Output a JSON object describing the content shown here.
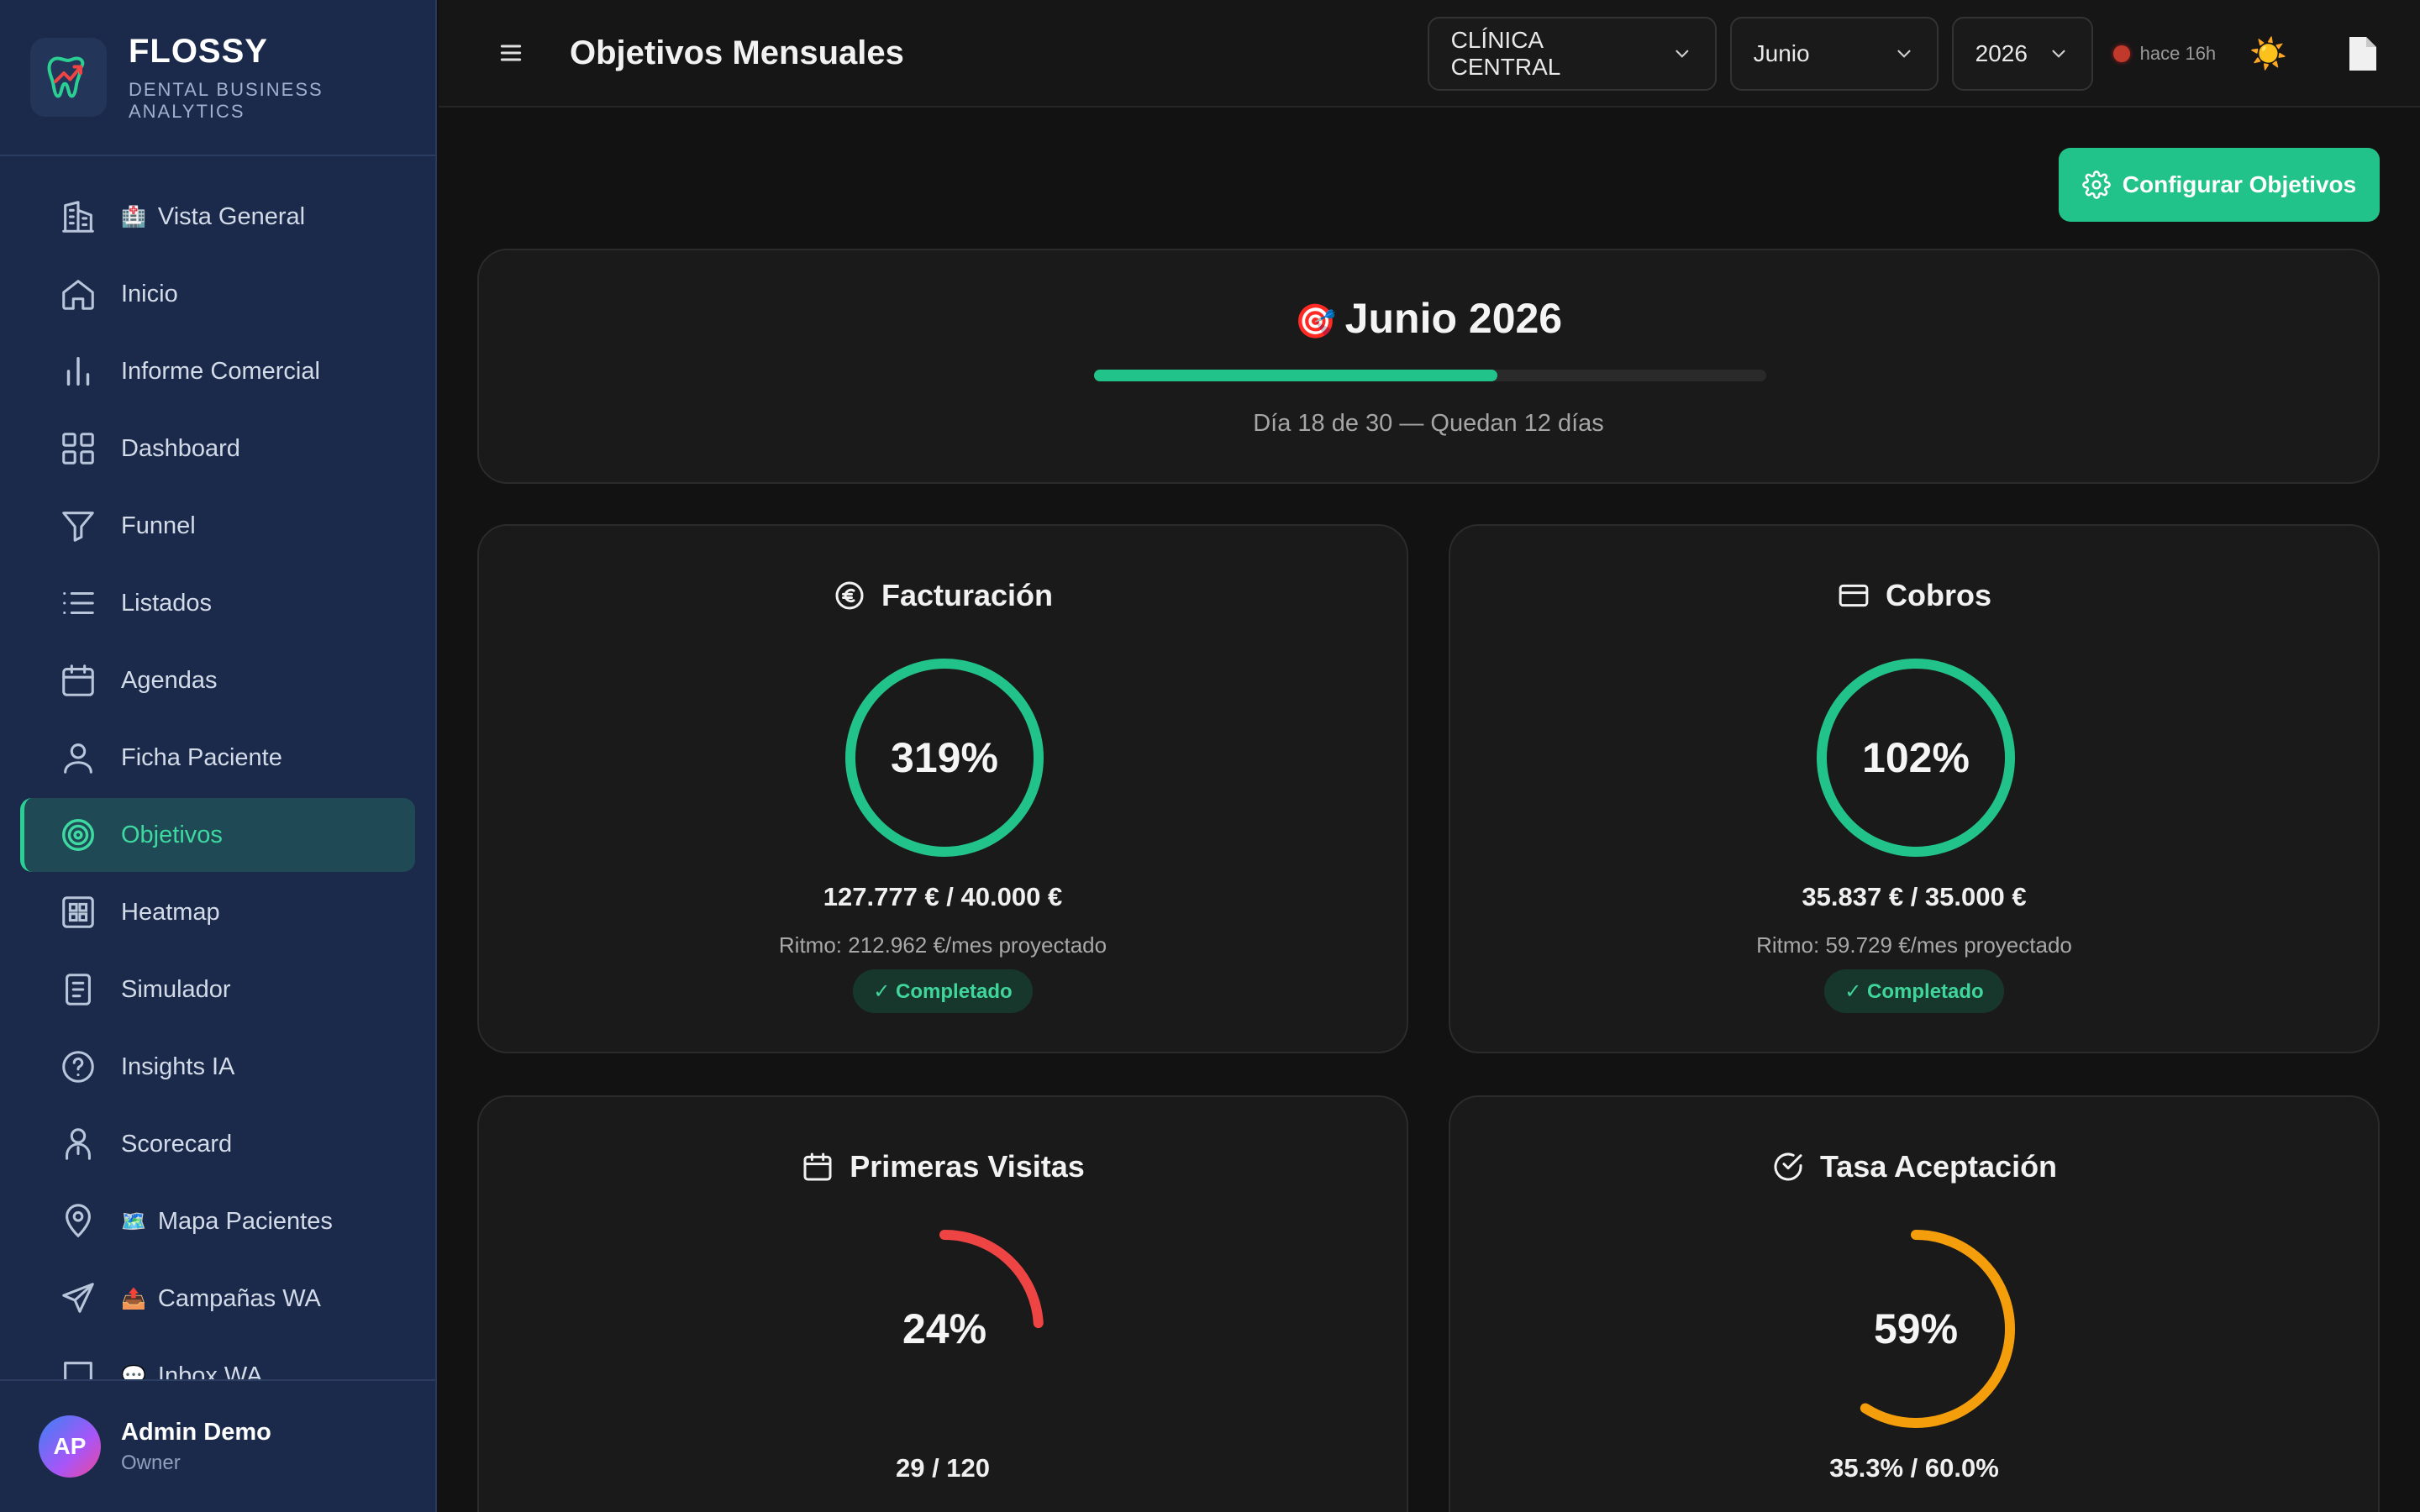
{
  "brand": {
    "name": "FLOSSY",
    "subtitle": "DENTAL BUSINESS ANALYTICS"
  },
  "sidebar": {
    "items": [
      {
        "label": "Vista General",
        "icon": "building-icon",
        "emoji": "🏥"
      },
      {
        "label": "Inicio",
        "icon": "home-icon"
      },
      {
        "label": "Informe Comercial",
        "icon": "bar-chart-icon"
      },
      {
        "label": "Dashboard",
        "icon": "grid-icon"
      },
      {
        "label": "Funnel",
        "icon": "funnel-icon"
      },
      {
        "label": "Listados",
        "icon": "list-icon"
      },
      {
        "label": "Agendas",
        "icon": "calendar-icon"
      },
      {
        "label": "Ficha Paciente",
        "icon": "user-icon"
      },
      {
        "label": "Objetivos",
        "icon": "target-icon",
        "active": true
      },
      {
        "label": "Heatmap",
        "icon": "heatmap-icon"
      },
      {
        "label": "Simulador",
        "icon": "document-icon"
      },
      {
        "label": "Insights IA",
        "icon": "help-circle-icon"
      },
      {
        "label": "Scorecard",
        "icon": "user-badge-icon"
      },
      {
        "label": "Mapa Pacientes",
        "icon": "map-pin-icon",
        "emoji": "🗺️"
      },
      {
        "label": "Campañas WA",
        "icon": "send-icon",
        "emoji": "📤"
      },
      {
        "label": "Inbox WA",
        "icon": "message-icon",
        "emoji": "💬"
      }
    ]
  },
  "user": {
    "initials": "AP",
    "name": "Admin Demo",
    "role": "Owner"
  },
  "header": {
    "title": "Objetivos Mensuales",
    "clinic": "CLÍNICA CENTRAL",
    "month": "Junio",
    "year": "2026",
    "sync_status": "hace 16h",
    "theme_icon": "☀️"
  },
  "actions": {
    "configure": "Configurar Objetivos"
  },
  "month_summary": {
    "emoji": "🎯",
    "title": "Junio 2026",
    "progress": 0.6,
    "subtitle": "Día 18 de 30 — Quedan 12 días"
  },
  "kpis": [
    {
      "title": "Facturación",
      "icon": "euro-icon",
      "percent_label": "319%",
      "fill": 1.0,
      "color": "#22c38a",
      "values": "127.777 € / 40.000 €",
      "pace": "Ritmo: 212.962 €/mes proyectado",
      "badge": "✓ Completado"
    },
    {
      "title": "Cobros",
      "icon": "credit-card-icon",
      "percent_label": "102%",
      "fill": 1.0,
      "color": "#22c38a",
      "values": "35.837 € / 35.000 €",
      "pace": "Ritmo: 59.729 €/mes proyectado",
      "badge": "✓ Completado"
    },
    {
      "title": "Primeras Visitas",
      "icon": "calendar-icon",
      "percent_label": "24%",
      "fill": 0.24,
      "color": "#ef4444",
      "values": "29 / 120"
    },
    {
      "title": "Tasa Aceptación",
      "icon": "check-circle-icon",
      "percent_label": "59%",
      "fill": 0.59,
      "color": "#f59e0b",
      "values": "35.3% / 60.0%"
    }
  ]
}
